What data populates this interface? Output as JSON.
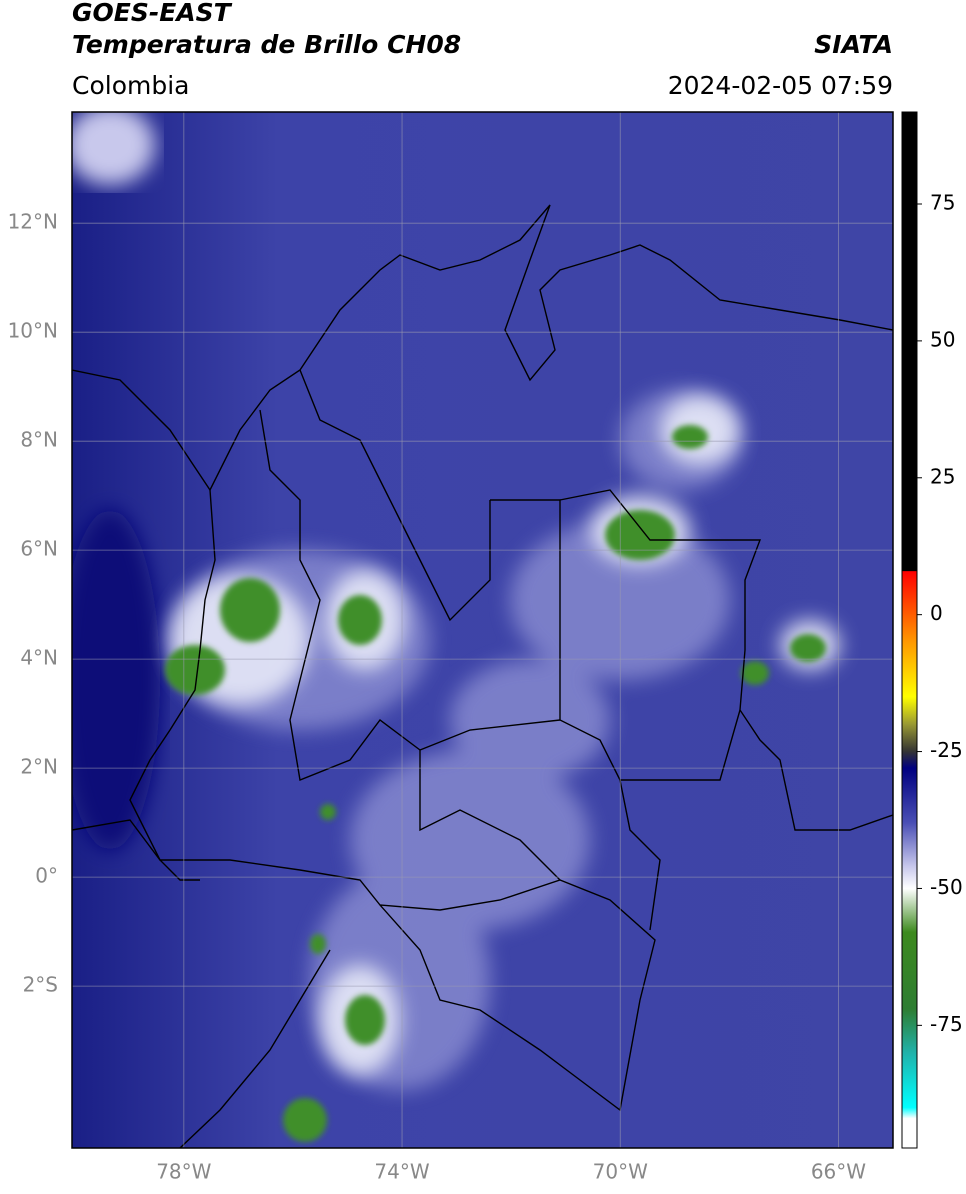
{
  "header": {
    "title": "GOES-EAST",
    "subtitle": "Temperatura de Brillo CH08",
    "source": "SIATA",
    "region": "Colombia",
    "datetime": "2024-02-05 07:59"
  },
  "map": {
    "xlim": [
      -80.05,
      -65.0
    ],
    "ylim": [
      -4.97,
      14.04
    ],
    "xticks": [
      {
        "value": -78,
        "label": "78°W"
      },
      {
        "value": -74,
        "label": "74°W"
      },
      {
        "value": -70,
        "label": "70°W"
      },
      {
        "value": -66,
        "label": "66°W"
      }
    ],
    "yticks": [
      {
        "value": 12,
        "label": "12°N"
      },
      {
        "value": 10,
        "label": "10°N"
      },
      {
        "value": 8,
        "label": "8°N"
      },
      {
        "value": 6,
        "label": "6°N"
      },
      {
        "value": 4,
        "label": "4°N"
      },
      {
        "value": 2,
        "label": "2°N"
      },
      {
        "value": 0,
        "label": "0°"
      },
      {
        "value": -2,
        "label": "2°S"
      }
    ],
    "grid": true
  },
  "colorbar": {
    "ylim": [
      -97.4,
      91.8
    ],
    "yticks": [
      75,
      50,
      25,
      0,
      -25,
      -50,
      -75
    ],
    "stops": [
      {
        "value": 91.8,
        "color": "#000000"
      },
      {
        "value": 8,
        "color": "#000000"
      },
      {
        "value": 7.9,
        "color": "#ff0000"
      },
      {
        "value": -5,
        "color": "#ff9900"
      },
      {
        "value": -15,
        "color": "#ffff00"
      },
      {
        "value": -20,
        "color": "#999933"
      },
      {
        "value": -25,
        "color": "#333333"
      },
      {
        "value": -28,
        "color": "#000080"
      },
      {
        "value": -38,
        "color": "#4a4fb5"
      },
      {
        "value": -46,
        "color": "#c8c8ec"
      },
      {
        "value": -50,
        "color": "#ffffff"
      },
      {
        "value": -58,
        "color": "#3d8a1e"
      },
      {
        "value": -72,
        "color": "#2e7d32"
      },
      {
        "value": -80,
        "color": "#20b2aa"
      },
      {
        "value": -90,
        "color": "#00ffff"
      },
      {
        "value": -92,
        "color": "#ffffff"
      },
      {
        "value": -97.4,
        "color": "#ffffff"
      }
    ]
  }
}
